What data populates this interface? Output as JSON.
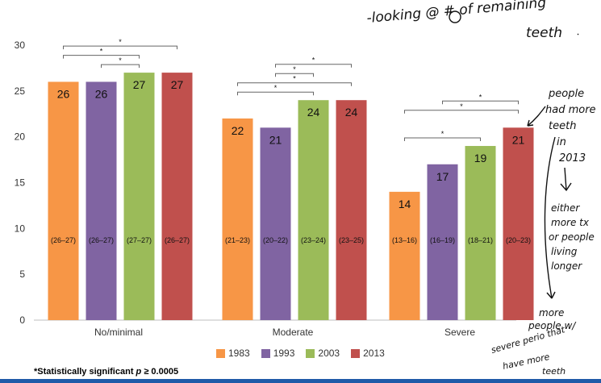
{
  "chart_data": {
    "type": "bar",
    "categories": [
      "No/minimal",
      "Moderate",
      "Severe"
    ],
    "series": [
      {
        "name": "1983",
        "color": "#f79646",
        "values": [
          26,
          22,
          14
        ],
        "ranges": [
          "(26–27)",
          "(21–23)",
          "(13–16)"
        ]
      },
      {
        "name": "1993",
        "color": "#8064a2",
        "values": [
          26,
          21,
          17
        ],
        "ranges": [
          "(26–27)",
          "(20–22)",
          "(16–19)"
        ]
      },
      {
        "name": "2003",
        "color": "#9bbb59",
        "values": [
          27,
          24,
          19
        ],
        "ranges": [
          "(27–27)",
          "(23–24)",
          "(18–21)"
        ]
      },
      {
        "name": "2013",
        "color": "#c0504d",
        "values": [
          27,
          24,
          21
        ],
        "ranges": [
          "(26–27)",
          "(23–25)",
          "(20–23)"
        ]
      }
    ],
    "y_ticks": [
      0,
      5,
      10,
      15,
      20,
      25,
      30
    ],
    "ylim": [
      0,
      30
    ],
    "grid": false,
    "legend_position": "bottom",
    "significance_marker": "*",
    "significance_brackets": [
      {
        "category": 0,
        "from": 0,
        "to": 3,
        "level": 3
      },
      {
        "category": 0,
        "from": 0,
        "to": 2,
        "level": 2
      },
      {
        "category": 0,
        "from": 1,
        "to": 2,
        "level": 1
      },
      {
        "category": 1,
        "from": 1,
        "to": 3,
        "level": 4
      },
      {
        "category": 1,
        "from": 1,
        "to": 2,
        "level": 3
      },
      {
        "category": 1,
        "from": 0,
        "to": 3,
        "level": 2
      },
      {
        "category": 1,
        "from": 0,
        "to": 2,
        "level": 1
      },
      {
        "category": 2,
        "from": 1,
        "to": 3,
        "level": 3
      },
      {
        "category": 2,
        "from": 0,
        "to": 3,
        "level": 2
      },
      {
        "category": 2,
        "from": 0,
        "to": 2,
        "level": 1
      }
    ]
  },
  "footnote": {
    "prefix": "*Statistically significant ",
    "variable": "p",
    "suffix": " ≥ 0.0005"
  },
  "annotations": {
    "top_note_line1": "-looking @ # of remaining",
    "top_note_line2": "teeth",
    "right_note": [
      "people",
      "had more",
      "teeth",
      "in",
      "2013"
    ],
    "side_note": [
      "either",
      "more tx",
      "or people",
      "living",
      "longer"
    ],
    "bottom_note": [
      "more",
      "people w/",
      "severe perio that",
      "have more",
      "teeth"
    ]
  }
}
